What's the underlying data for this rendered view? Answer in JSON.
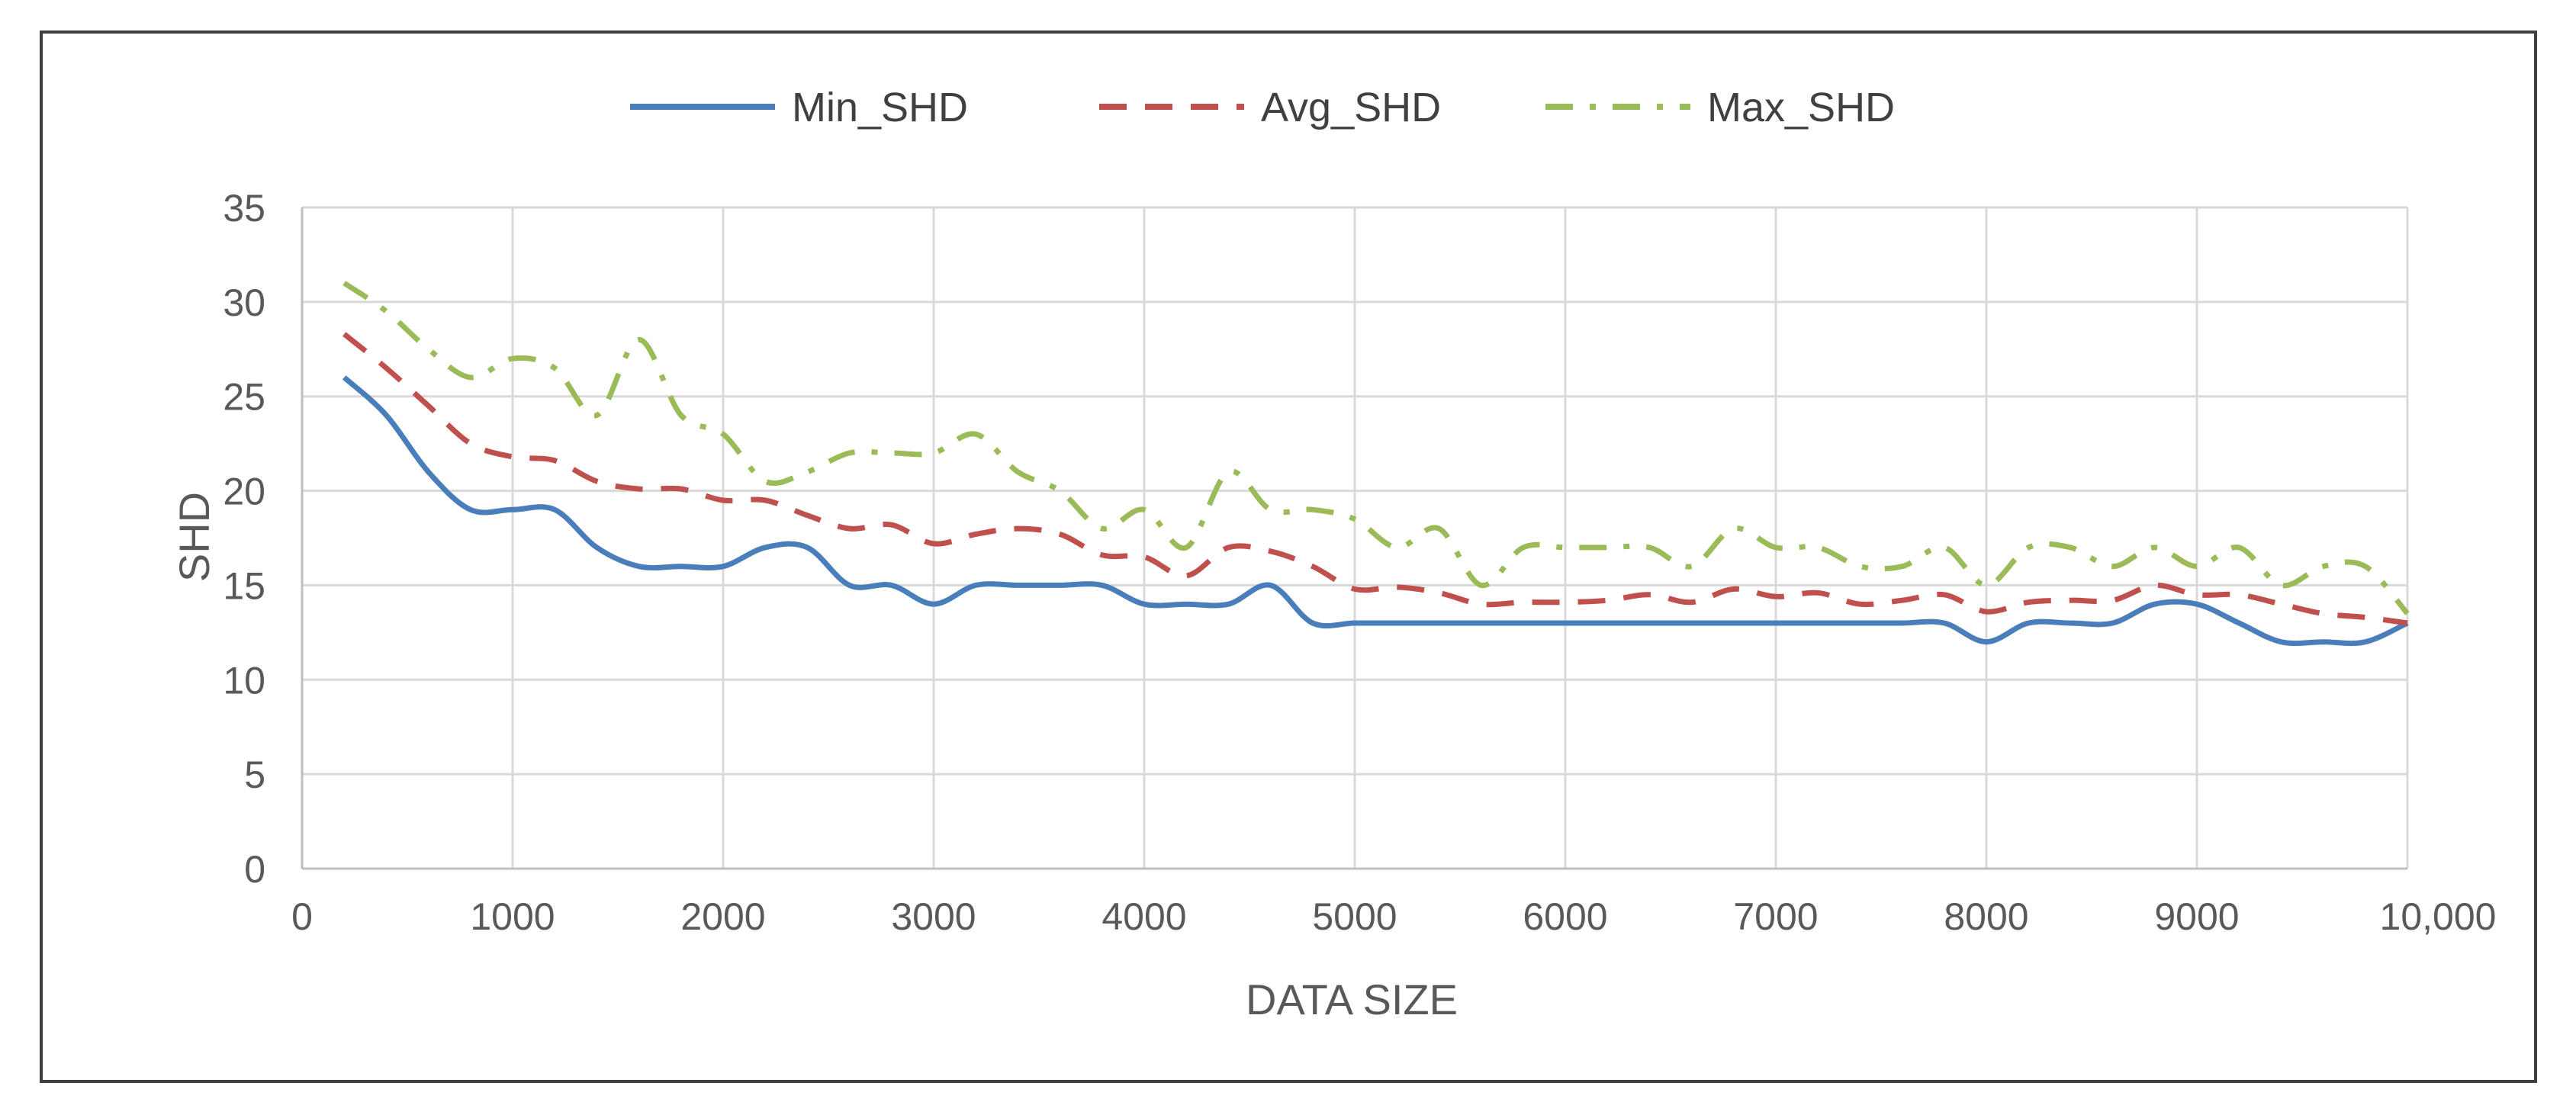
{
  "chart_data": {
    "type": "line",
    "title": "",
    "xlabel": "DATA SIZE",
    "ylabel": "SHD",
    "xlim": [
      0,
      10000
    ],
    "ylim": [
      0,
      35
    ],
    "x_ticks": [
      0,
      1000,
      2000,
      3000,
      4000,
      5000,
      6000,
      7000,
      8000,
      9000,
      10000
    ],
    "x_tick_labels": [
      "0",
      "1000",
      "2000",
      "3000",
      "4000",
      "5000",
      "6000",
      "7000",
      "8000",
      "9000",
      "10,000"
    ],
    "y_ticks": [
      0,
      5,
      10,
      15,
      20,
      25,
      30,
      35
    ],
    "y_tick_labels": [
      "0",
      "5",
      "10",
      "15",
      "20",
      "25",
      "30",
      "35"
    ],
    "grid": true,
    "legend_position": "top",
    "x": [
      200,
      400,
      600,
      800,
      1000,
      1200,
      1400,
      1600,
      1800,
      2000,
      2200,
      2400,
      2600,
      2800,
      3000,
      3200,
      3400,
      3600,
      3800,
      4000,
      4200,
      4400,
      4600,
      4800,
      5000,
      5200,
      5400,
      5600,
      5800,
      6000,
      6200,
      6400,
      6600,
      6800,
      7000,
      7200,
      7400,
      7600,
      7800,
      8000,
      8200,
      8400,
      8600,
      8800,
      9000,
      9200,
      9400,
      9600,
      9800,
      10000
    ],
    "series": [
      {
        "name": "Min_SHD",
        "color": "#4a7ebb",
        "style": "solid",
        "values": [
          26,
          24,
          21,
          19,
          19,
          19,
          17,
          16,
          16,
          16,
          17,
          17,
          15,
          15,
          14,
          15,
          15,
          15,
          15,
          14,
          14,
          14,
          15,
          13,
          13,
          13,
          13,
          13,
          13,
          13,
          13,
          13,
          13,
          13,
          13,
          13,
          13,
          13,
          13,
          12,
          13,
          13,
          13,
          14,
          14,
          13,
          12,
          12,
          12,
          13
        ]
      },
      {
        "name": "Avg_SHD",
        "color": "#c0504d",
        "style": "dashed",
        "values": [
          28.3,
          26.5,
          24.5,
          22.5,
          21.8,
          21.6,
          20.5,
          20.1,
          20.1,
          19.5,
          19.5,
          18.7,
          18.0,
          18.2,
          17.2,
          17.7,
          18.0,
          17.7,
          16.6,
          16.5,
          15.5,
          17.0,
          16.8,
          16.0,
          14.8,
          14.9,
          14.6,
          14.0,
          14.1,
          14.1,
          14.2,
          14.5,
          14.1,
          14.8,
          14.4,
          14.6,
          14.0,
          14.2,
          14.5,
          13.6,
          14.1,
          14.2,
          14.2,
          15.0,
          14.5,
          14.5,
          14.0,
          13.5,
          13.3,
          13.0
        ]
      },
      {
        "name": "Max_SHD",
        "color": "#9bbb59",
        "style": "dashdot",
        "values": [
          31,
          29.5,
          27.5,
          26,
          27,
          26.5,
          24,
          28,
          24,
          23,
          20.5,
          21,
          22,
          22,
          22,
          23,
          21,
          20,
          18,
          19,
          17,
          21,
          19,
          19,
          18.5,
          17,
          18,
          15,
          17,
          17,
          17,
          17,
          16,
          18,
          17,
          17,
          16,
          16,
          17,
          15,
          17,
          17,
          16,
          17,
          16,
          17,
          15,
          16,
          16,
          13.5
        ]
      }
    ]
  }
}
